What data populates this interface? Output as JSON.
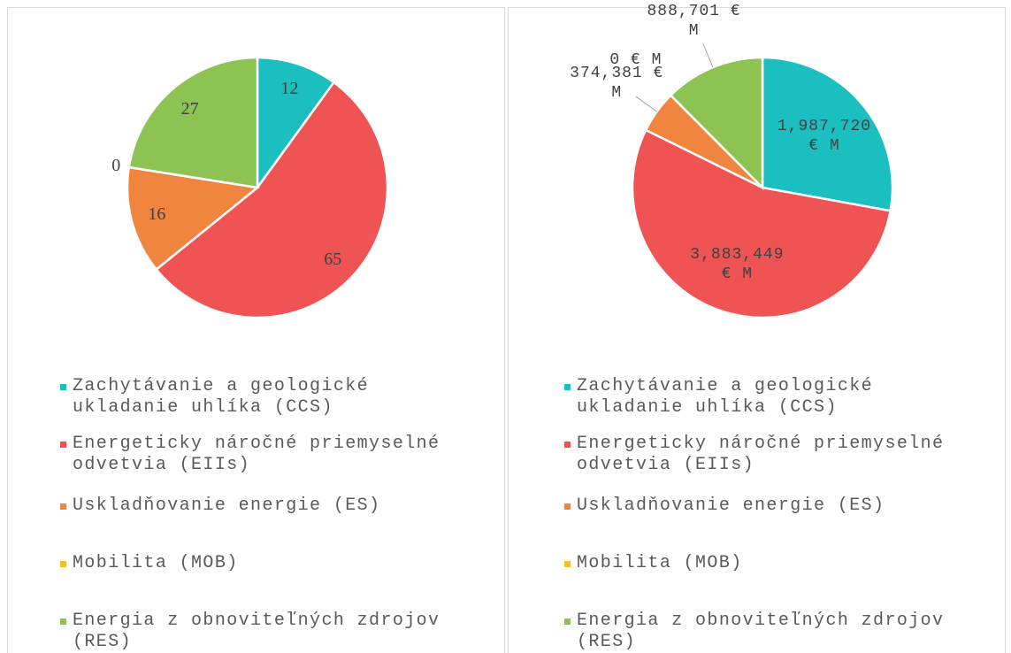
{
  "chart_data": [
    {
      "type": "pie",
      "categories": [
        "Zachytávanie a geologické ukladanie uhlíka (CCS)",
        "Energeticky náročné priemyselné odvetvia (EIIs)",
        "Uskladňovanie energie (ES)",
        "Mobilita (MOB)",
        "Energia z obnoviteľných zdrojov (RES)"
      ],
      "values": [
        12,
        65,
        16,
        0,
        27
      ],
      "colors": [
        "#1cbfc0",
        "#ef5353",
        "#f0853f",
        "#f2c12e",
        "#8cc353"
      ]
    },
    {
      "type": "pie",
      "categories": [
        "Zachytávanie a geologické ukladanie uhlíka (CCS)",
        "Energeticky náročné priemyselné odvetvia (EIIs)",
        "Uskladňovanie energie (ES)",
        "Mobilita (MOB)",
        "Energia z obnoviteľných zdrojov (RES)"
      ],
      "values": [
        1987720,
        3883449,
        374381,
        0,
        888701
      ],
      "value_labels": [
        "1,987,720 € M",
        "3,883,449 € M",
        "374,381 € M",
        "0 € M",
        "888,701 € M"
      ],
      "colors": [
        "#1cbfc0",
        "#ef5353",
        "#f0853f",
        "#f2c12e",
        "#8cc353"
      ]
    }
  ]
}
